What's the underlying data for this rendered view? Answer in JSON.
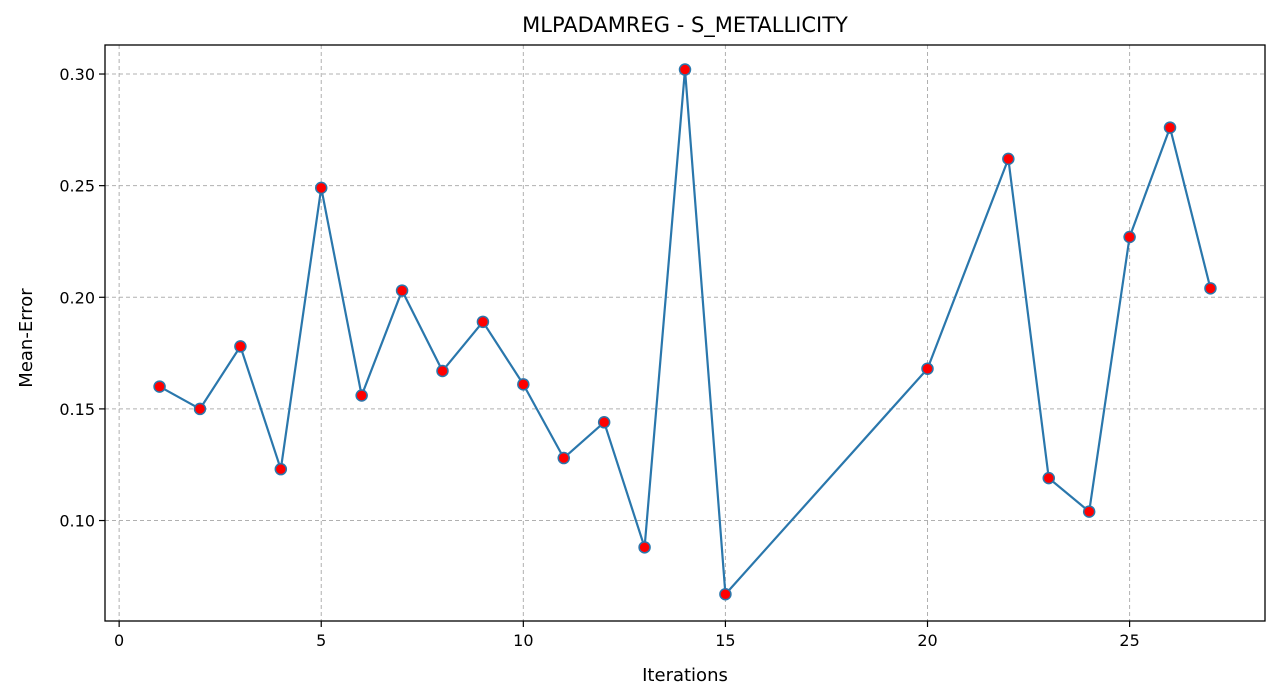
{
  "chart_data": {
    "type": "line",
    "title": "MLPADAMREG - S_METALLICITY",
    "xlabel": "Iterations",
    "ylabel": "Mean-Error",
    "xlim": [
      -0.35,
      28.35
    ],
    "ylim": [
      0.055,
      0.313
    ],
    "xticks": [
      0,
      5,
      10,
      15,
      20,
      25
    ],
    "xtick_labels": [
      "0",
      "5",
      "10",
      "15",
      "20",
      "25"
    ],
    "yticks": [
      0.1,
      0.15,
      0.2,
      0.25,
      0.3
    ],
    "ytick_labels": [
      "0.10",
      "0.15",
      "0.20",
      "0.25",
      "0.30"
    ],
    "grid": true,
    "series": [
      {
        "line_color": "#2a77ac",
        "marker_color": "#ff0000",
        "x": [
          1,
          2,
          3,
          4,
          5,
          6,
          7,
          8,
          9,
          10,
          11,
          12,
          13,
          14,
          15,
          20,
          22,
          23,
          24,
          25,
          26,
          27
        ],
        "y": [
          0.16,
          0.15,
          0.178,
          0.123,
          0.249,
          0.156,
          0.203,
          0.167,
          0.189,
          0.161,
          0.128,
          0.144,
          0.088,
          0.302,
          0.067,
          0.168,
          0.262,
          0.119,
          0.104,
          0.227,
          0.276,
          0.204
        ]
      }
    ]
  }
}
